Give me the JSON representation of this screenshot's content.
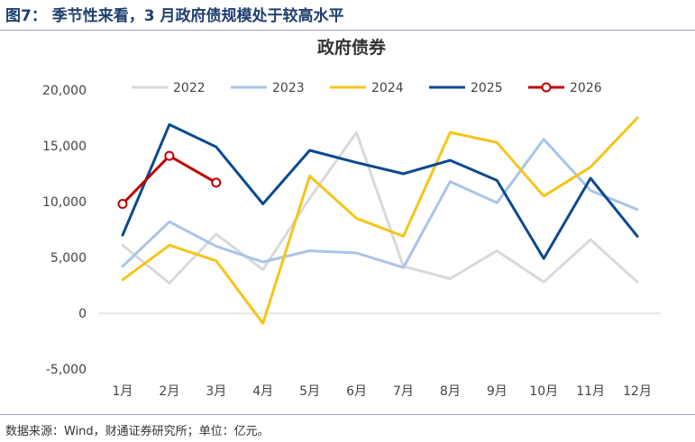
{
  "figure": {
    "label": "图7：",
    "title": "季节性来看，3 月政府债规模处于较高水平"
  },
  "source_note": "数据来源：Wind，财通证券研究所；单位：亿元。",
  "chart_data": {
    "type": "line",
    "title": "政府债券",
    "xlabel": "",
    "ylabel": "",
    "categories": [
      "1月",
      "2月",
      "3月",
      "4月",
      "5月",
      "6月",
      "7月",
      "8月",
      "9月",
      "10月",
      "11月",
      "12月"
    ],
    "ylim": [
      -5000,
      20000
    ],
    "yticks": [
      -5000,
      0,
      5000,
      10000,
      15000,
      20000
    ],
    "ytick_labels": [
      "-5,000",
      "0",
      "5,000",
      "10,000",
      "15,000",
      "20,000"
    ],
    "grid": false,
    "legend_position": "top",
    "series": [
      {
        "name": "2022",
        "color": "#d9d9d9",
        "marker": false,
        "values": [
          6100,
          2700,
          7100,
          3900,
          10300,
          16200,
          4200,
          3100,
          5600,
          2800,
          6600,
          2800
        ]
      },
      {
        "name": "2023",
        "color": "#a9c4e8",
        "marker": false,
        "values": [
          4200,
          8200,
          6000,
          4600,
          5600,
          5400,
          4100,
          11800,
          9900,
          15600,
          11000,
          9300
        ]
      },
      {
        "name": "2024",
        "color": "#f5c518",
        "marker": false,
        "values": [
          3000,
          6100,
          4700,
          -900,
          12300,
          8500,
          6900,
          16200,
          15300,
          10500,
          13100,
          17500
        ]
      },
      {
        "name": "2025",
        "color": "#0b4a8f",
        "marker": false,
        "values": [
          7000,
          16900,
          14900,
          9800,
          14600,
          13500,
          12500,
          13700,
          11900,
          4900,
          12100,
          6900
        ]
      },
      {
        "name": "2026",
        "color": "#c00000",
        "marker": true,
        "values": [
          9800,
          14100,
          11700,
          null,
          null,
          null,
          null,
          null,
          null,
          null,
          null,
          null
        ]
      }
    ]
  }
}
